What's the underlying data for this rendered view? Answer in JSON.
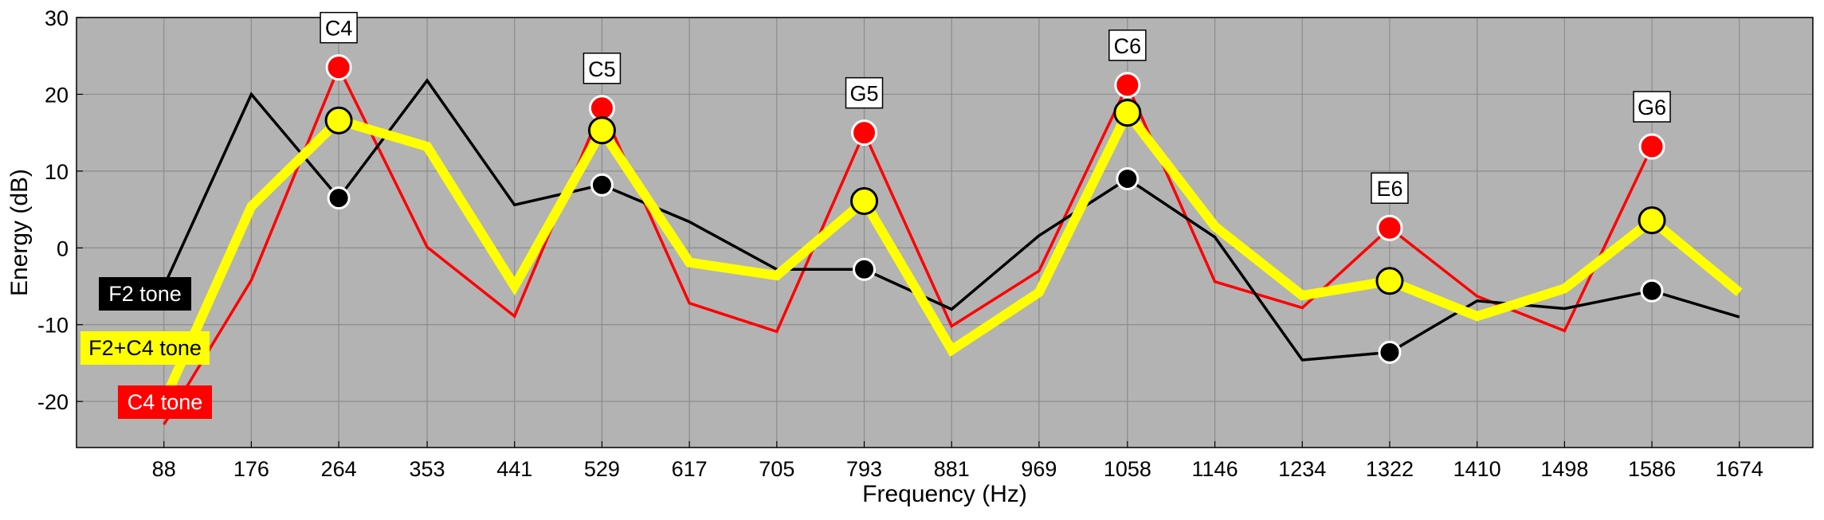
{
  "chart_data": {
    "type": "line",
    "xlabel": "Frequency (Hz)",
    "ylabel": "Energy (dB)",
    "ylim": [
      -26,
      30
    ],
    "x_ticks": [
      "88",
      "176",
      "264",
      "353",
      "441",
      "529",
      "617",
      "705",
      "793",
      "881",
      "969",
      "1058",
      "1146",
      "1234",
      "1322",
      "1410",
      "1498",
      "1586",
      "1674"
    ],
    "y_ticks": [
      30,
      20,
      10,
      0,
      -10,
      -20
    ],
    "grid": true,
    "colors": {
      "background": "#b3b3b3",
      "grid": "#8c8c8c",
      "f2": "#000000",
      "c4": "#ff0000",
      "mix": "#ffff00"
    },
    "series": [
      {
        "name": "F2 tone",
        "color": "#000000",
        "x": [
          88,
          176,
          264,
          353,
          441,
          529,
          617,
          705,
          793,
          881,
          969,
          1058,
          1146,
          1234,
          1322,
          1410,
          1498,
          1586,
          1674
        ],
        "values": [
          -5.0,
          20.0,
          6.5,
          21.8,
          5.6,
          8.2,
          3.4,
          -2.8,
          -2.8,
          -8.0,
          1.6,
          9.0,
          1.4,
          -14.6,
          -13.6,
          -6.9,
          -7.9,
          -5.6,
          -9.0
        ],
        "markers": [
          {
            "x": 264,
            "y": 6.5
          },
          {
            "x": 529,
            "y": 8.2
          },
          {
            "x": 793,
            "y": -2.8
          },
          {
            "x": 1058,
            "y": 9.0
          },
          {
            "x": 1322,
            "y": -13.6
          },
          {
            "x": 1586,
            "y": -5.6
          }
        ]
      },
      {
        "name": "C4 tone",
        "color": "#ff0000",
        "x": [
          88,
          176,
          264,
          353,
          441,
          529,
          617,
          705,
          793,
          881,
          969,
          1058,
          1146,
          1234,
          1322,
          1410,
          1498,
          1586
        ],
        "values": [
          -23.0,
          -4.2,
          23.5,
          0.1,
          -8.9,
          18.2,
          -7.2,
          -10.9,
          15.0,
          -10.2,
          -3.0,
          21.2,
          -4.4,
          -7.8,
          2.6,
          -6.3,
          -10.8,
          13.2
        ],
        "markers": [
          {
            "x": 264,
            "y": 23.5
          },
          {
            "x": 529,
            "y": 18.2
          },
          {
            "x": 793,
            "y": 15.0
          },
          {
            "x": 1058,
            "y": 21.2
          },
          {
            "x": 1322,
            "y": 2.6
          },
          {
            "x": 1586,
            "y": 13.2
          }
        ]
      },
      {
        "name": "F2+C4 tone",
        "color": "#ffff00",
        "x": [
          88,
          176,
          264,
          353,
          441,
          529,
          617,
          705,
          793,
          881,
          969,
          1058,
          1146,
          1234,
          1322,
          1410,
          1498,
          1586,
          1674
        ],
        "values": [
          -20.0,
          5.4,
          16.6,
          13.2,
          -5.0,
          15.3,
          -1.9,
          -3.6,
          6.1,
          -13.3,
          -5.8,
          17.6,
          2.8,
          -6.2,
          -4.3,
          -8.9,
          -5.3,
          3.6,
          -5.8
        ],
        "markers": [
          {
            "x": 264,
            "y": 16.6
          },
          {
            "x": 529,
            "y": 15.3
          },
          {
            "x": 793,
            "y": 6.1
          },
          {
            "x": 1058,
            "y": 17.6
          },
          {
            "x": 1322,
            "y": -4.3
          },
          {
            "x": 1586,
            "y": 3.6
          }
        ]
      }
    ],
    "annotations": [
      {
        "text": "C4",
        "x": 264,
        "y": 23.5
      },
      {
        "text": "C5",
        "x": 529,
        "y": 18.2
      },
      {
        "text": "G5",
        "x": 793,
        "y": 15.0
      },
      {
        "text": "C6",
        "x": 1058,
        "y": 21.2
      },
      {
        "text": "E6",
        "x": 1322,
        "y": 2.6
      },
      {
        "text": "G6",
        "x": 1586,
        "y": 13.2
      }
    ],
    "legend": {
      "placement": "left",
      "items": [
        {
          "text": "F2 tone",
          "bg": "#000000",
          "fg": "#ffffff"
        },
        {
          "text": "F2+C4 tone",
          "bg": "#ffff00",
          "fg": "#000000"
        },
        {
          "text": "C4 tone",
          "bg": "#ff0000",
          "fg": "#ffffff"
        }
      ]
    }
  }
}
